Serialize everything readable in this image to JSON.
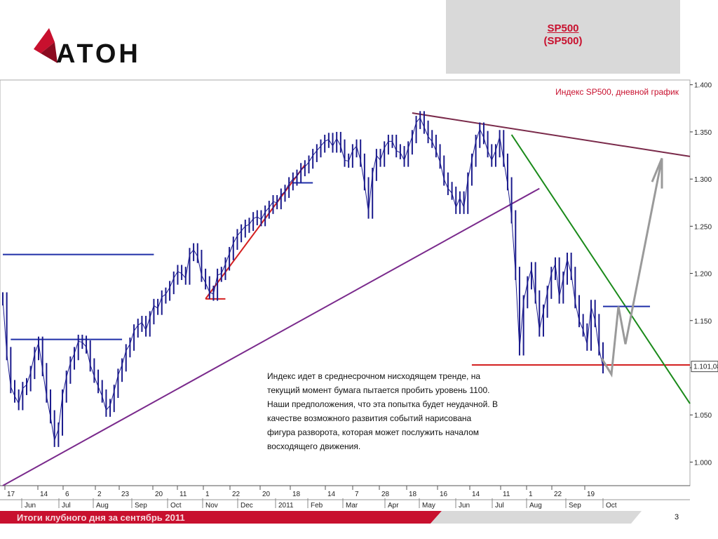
{
  "header": {
    "logo_text": "АТОН",
    "title": "SP500",
    "subtitle": "(SP500)"
  },
  "footer": {
    "text": "Итоги клубного дня за сентябрь 2011",
    "page_number": "3"
  },
  "colors": {
    "brand_red": "#c8102e",
    "price_series": "#1a1a8c",
    "support_line": "#7a2a8c",
    "resistance_line_blue": "#1f2fa8",
    "red_level": "#d42020",
    "green_trend": "#1a8a1a",
    "forecast_path": "#9a9a9a",
    "downtrend_line": "#7a2a4a"
  },
  "chart_data": {
    "type": "line",
    "title": "Индекс SP500, дневной график",
    "y_axis": {
      "ticks": [
        "1.400",
        "1.350",
        "1.300",
        "1.250",
        "1.200",
        "1.150",
        "1.100",
        "1.050",
        "1.000"
      ],
      "tick_values": [
        1400,
        1350,
        1300,
        1250,
        1200,
        1150,
        1100,
        1050,
        1000
      ],
      "ylim": [
        975,
        1405
      ],
      "current_value_label": "1.101,08"
    },
    "x_axis": {
      "day_ticks": [
        "17",
        "14",
        "6",
        "2",
        "23",
        "20",
        "11",
        "1",
        "22",
        "20",
        "18",
        "14",
        "7",
        "28",
        "18",
        "16",
        "14",
        "11",
        "1",
        "22",
        "19"
      ],
      "month_labels": [
        "Jun",
        "Jul",
        "Aug",
        "Sep",
        "Oct",
        "Nov",
        "Dec",
        "2011",
        "Feb",
        "Mar",
        "Apr",
        "May",
        "Jun",
        "Jul",
        "Aug",
        "Sep",
        "Oct"
      ]
    },
    "series": [
      {
        "values": [
          1173,
          1115,
          1080,
          1070,
          1062,
          1078,
          1082,
          1095,
          1115,
          1126,
          1098,
          1070,
          1048,
          1023,
          1035,
          1070,
          1090,
          1105,
          1115,
          1128,
          1127,
          1122,
          1103,
          1091,
          1080,
          1070,
          1055,
          1060,
          1075,
          1092,
          1103,
          1118,
          1125,
          1139,
          1145,
          1148,
          1140,
          1153,
          1166,
          1163,
          1175,
          1178,
          1185,
          1195,
          1202,
          1200,
          1195,
          1220,
          1225,
          1218,
          1198,
          1190,
          1180,
          1178,
          1198,
          1200,
          1210,
          1221,
          1232,
          1240,
          1245,
          1250,
          1252,
          1258,
          1260,
          1257,
          1265,
          1270,
          1276,
          1275,
          1283,
          1287,
          1295,
          1300,
          1303,
          1310,
          1313,
          1318,
          1325,
          1330,
          1335,
          1340,
          1342,
          1335,
          1343,
          1335,
          1320,
          1319,
          1330,
          1335,
          1320,
          1295,
          1265,
          1305,
          1325,
          1320,
          1333,
          1340,
          1340,
          1330,
          1328,
          1320,
          1333,
          1345,
          1360,
          1365,
          1355,
          1345,
          1340,
          1330,
          1318,
          1300,
          1290,
          1285,
          1270,
          1280,
          1270,
          1300,
          1320,
          1340,
          1353,
          1344,
          1330,
          1320,
          1330,
          1345,
          1320,
          1295,
          1260,
          1200,
          1120,
          1170,
          1190,
          1205,
          1175,
          1140,
          1160,
          1180,
          1200,
          1210,
          1175,
          1195,
          1215,
          1200,
          1170,
          1150,
          1140,
          1125,
          1165,
          1150,
          1120,
          1101
        ]
      }
    ],
    "lines": [
      {
        "name": "восходящий тренд",
        "color": "support_line",
        "from": [
          0,
          975
        ],
        "to": [
          135,
          1290
        ]
      },
      {
        "name": "нисходящий тренд",
        "color": "downtrend_line",
        "from": [
          103,
          1370
        ],
        "to": [
          152,
          1324
        ]
      },
      {
        "name": "сопротивление",
        "color": "resistance_line_blue",
        "from": [
          0,
          1220
        ],
        "to": [
          38,
          1220
        ]
      },
      {
        "name": "поддержка",
        "color": "resistance_line_blue",
        "from": [
          2,
          1130
        ],
        "to": [
          30,
          1130
        ]
      },
      {
        "name": "уровень",
        "color": "red_level",
        "from": [
          118,
          1103
        ],
        "to": [
          154,
          1103
        ]
      },
      {
        "name": "зелёный тренд",
        "color": "green_trend",
        "from": [
          128,
          1347
        ],
        "to": [
          159,
          1062
        ]
      }
    ]
  },
  "annotation": {
    "text": "Индекс идет в среднесрочном нисходящем тренде, на текущий момент бумага пытается пробить уровень 1100. Наши предположения, что эта попытка будет неудачной. В качестве возможного развития событий нарисована фигура разворота, которая может послужить началом восходящего движения."
  }
}
